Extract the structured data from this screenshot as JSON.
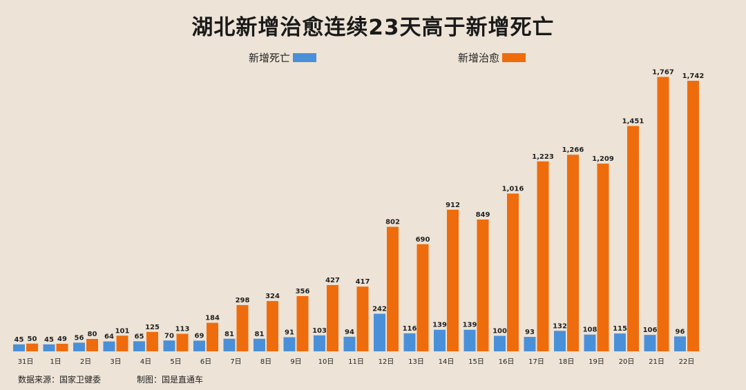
{
  "title": "湖北新增治愈连续23天高于新增死亡",
  "legend": {
    "deaths": "新增死亡",
    "cures": "新增治愈"
  },
  "footer": {
    "source": "数据来源：国家卫健委",
    "credit": "制图：国是直通车"
  },
  "colors": {
    "deaths": "#4a90d9",
    "cures": "#ef6c0c",
    "background": "#ede3d6"
  },
  "chart_data": {
    "type": "bar",
    "title": "湖北新增治愈连续23天高于新增死亡",
    "categories": [
      "31日",
      "1日",
      "2日",
      "3日",
      "4日",
      "5日",
      "6日",
      "7日",
      "8日",
      "9日",
      "10日",
      "11日",
      "12日",
      "13日",
      "14日",
      "15日",
      "16日",
      "17日",
      "18日",
      "19日",
      "20日",
      "21日",
      "22日"
    ],
    "series": [
      {
        "name": "新增死亡",
        "values": [
          45,
          45,
          56,
          64,
          65,
          70,
          69,
          81,
          81,
          91,
          103,
          94,
          242,
          116,
          139,
          139,
          100,
          93,
          132,
          108,
          115,
          106,
          96
        ],
        "labels": [
          "45",
          "45",
          "56",
          "64",
          "65",
          "70",
          "69",
          "81",
          "81",
          "91",
          "103",
          "94",
          "242",
          "116",
          "139",
          "139",
          "100",
          "93",
          "132",
          "108",
          "115",
          "106",
          "96"
        ]
      },
      {
        "name": "新增治愈",
        "values": [
          50,
          49,
          80,
          101,
          125,
          113,
          184,
          298,
          324,
          356,
          427,
          417,
          802,
          690,
          912,
          849,
          1016,
          1223,
          1266,
          1209,
          1451,
          1767,
          1742
        ],
        "labels": [
          "50",
          "49",
          "80",
          "101",
          "125",
          "113",
          "184",
          "298",
          "324",
          "356",
          "427",
          "417",
          "802",
          "690",
          "912",
          "849",
          "1,016",
          "1,223",
          "1,266",
          "1,209",
          "1,451",
          "1,767",
          "1,742"
        ]
      }
    ],
    "ylim": [
      0,
      1800
    ],
    "grid": false,
    "legend_position": "top"
  }
}
